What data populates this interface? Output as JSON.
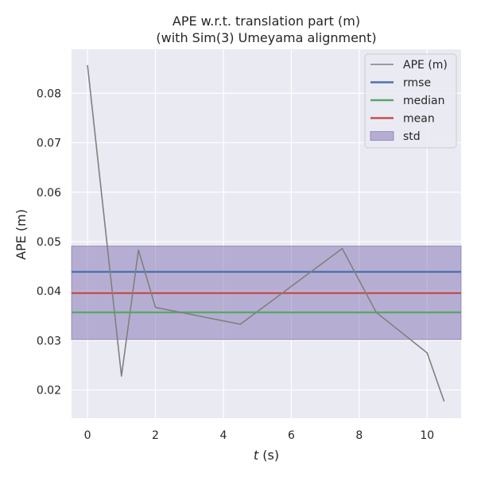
{
  "chart_data": {
    "type": "line",
    "title_lines": [
      "APE w.r.t. translation part (m)",
      "(with Sim(3) Umeyama alignment)"
    ],
    "xlabel_italic": "t",
    "xlabel_rest": " (s)",
    "ylabel": "APE (m)",
    "xlim": [
      -0.47,
      11.0
    ],
    "ylim": [
      0.0143,
      0.0889
    ],
    "xticks": [
      0,
      2,
      4,
      6,
      8,
      10
    ],
    "xtick_labels": [
      "0",
      "2",
      "4",
      "6",
      "8",
      "10"
    ],
    "yticks": [
      0.02,
      0.03,
      0.04,
      0.05,
      0.06,
      0.07,
      0.08
    ],
    "ytick_labels": [
      "0.02",
      "0.03",
      "0.04",
      "0.05",
      "0.06",
      "0.07",
      "0.08"
    ],
    "grid": true,
    "legend_position": "top-right",
    "series": [
      {
        "name": "APE (m)",
        "color": "#808080",
        "x": [
          0,
          1,
          1.5,
          2,
          4.5,
          7.5,
          8.5,
          10,
          10.5
        ],
        "y": [
          0.0857,
          0.0228,
          0.0483,
          0.0367,
          0.0333,
          0.0486,
          0.0357,
          0.0275,
          0.0177
        ]
      }
    ],
    "stats": [
      {
        "name": "rmse",
        "value": 0.0439,
        "color": "#4c72b0"
      },
      {
        "name": "median",
        "value": 0.0357,
        "color": "#55a868"
      },
      {
        "name": "mean",
        "value": 0.0396,
        "color": "#c44e52"
      }
    ],
    "std_band": {
      "name": "std",
      "low": 0.0302,
      "high": 0.0491,
      "color": "#8172b2"
    },
    "colors": {
      "background": "#eaeaf2",
      "grid": "#ffffff"
    }
  }
}
